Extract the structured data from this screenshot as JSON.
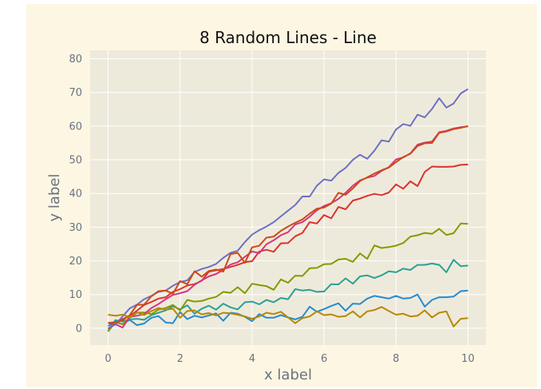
{
  "chart_data": {
    "type": "line",
    "title": "8 Random Lines - Line",
    "xlabel": "x label",
    "ylabel": "y label",
    "xlim": [
      -0.5,
      10.5
    ],
    "ylim": [
      -5,
      82.5
    ],
    "xticks": [
      0,
      2,
      4,
      6,
      8,
      10
    ],
    "yticks": [
      0,
      10,
      20,
      30,
      40,
      50,
      60,
      70,
      80
    ],
    "grid": true,
    "legend": "none",
    "colors": {
      "figure_bg": "#fdf6e3",
      "axes_bg": "#eeeadb",
      "grid": "#ffffff",
      "tick_label": "#6b7280"
    },
    "x": [
      0,
      0.2,
      0.4,
      0.6,
      0.8,
      1.0,
      1.2,
      1.4,
      1.6,
      1.8,
      2.0,
      2.2,
      2.4,
      2.6,
      2.8,
      3.0,
      3.2,
      3.4,
      3.6,
      3.8,
      4.0,
      4.2,
      4.4,
      4.6,
      4.8,
      5.0,
      5.2,
      5.4,
      5.6,
      5.8,
      6.0,
      6.2,
      6.4,
      6.6,
      6.8,
      7.0,
      7.2,
      7.4,
      7.6,
      7.8,
      8.0,
      8.2,
      8.4,
      8.6,
      8.8,
      9.0,
      9.2,
      9.4,
      9.6,
      9.8,
      10.0
    ],
    "series": [
      {
        "color": "#268bd2",
        "values": [
          0.6,
          1.9,
          1.2,
          2.5,
          0.9,
          1.4,
          3.1,
          3.6,
          1.7,
          1.5,
          4.8,
          2.7,
          3.7,
          3.2,
          3.8,
          4.4,
          2.2,
          4.6,
          4.3,
          3.4,
          2.1,
          4.2,
          3.1,
          3.1,
          3.9,
          3.2,
          2.6,
          3.4,
          6.4,
          4.9,
          5.7,
          6.6,
          7.4,
          5.2,
          7.3,
          7.2,
          8.8,
          9.6,
          9.2,
          8.8,
          9.6,
          8.8,
          9.0,
          10.0,
          6.4,
          8.4,
          9.2,
          9.2,
          9.4,
          11.0,
          11.2
        ]
      },
      {
        "color": "#2aa198",
        "values": [
          -0.9,
          2.4,
          2.0,
          2.6,
          2.8,
          2.5,
          3.9,
          4.6,
          5.3,
          6.5,
          5.6,
          6.8,
          4.3,
          5.8,
          6.7,
          5.5,
          7.3,
          6.2,
          5.6,
          7.7,
          7.9,
          7.1,
          8.4,
          7.7,
          9.0,
          8.6,
          11.6,
          11.2,
          11.4,
          10.8,
          10.9,
          13.1,
          13.0,
          14.8,
          13.2,
          15.4,
          15.7,
          14.9,
          15.7,
          16.9,
          16.6,
          17.7,
          17.3,
          18.8,
          18.8,
          19.2,
          18.8,
          16.6,
          20.3,
          18.4,
          18.6
        ]
      },
      {
        "color": "#859900",
        "values": [
          -1.0,
          1.8,
          1.2,
          3.1,
          4.6,
          4.7,
          4.2,
          5.5,
          6.0,
          6.9,
          5.3,
          8.4,
          7.9,
          8.1,
          8.8,
          9.3,
          10.8,
          10.5,
          12.2,
          10.4,
          13.2,
          12.8,
          12.5,
          11.4,
          14.5,
          13.5,
          15.6,
          15.5,
          17.8,
          17.9,
          19.0,
          19.1,
          20.4,
          20.6,
          19.7,
          22.2,
          20.6,
          24.6,
          23.8,
          24.1,
          24.5,
          25.3,
          27.2,
          27.6,
          28.3,
          28.0,
          29.5,
          27.7,
          28.2,
          31.1,
          31.0
        ]
      },
      {
        "color": "#dc322f",
        "values": [
          -0.2,
          1.3,
          2.7,
          3.6,
          5.2,
          6.9,
          7.8,
          8.8,
          9.2,
          10.8,
          11.6,
          12.7,
          13.1,
          14.1,
          16.8,
          17.2,
          17.6,
          18.2,
          18.8,
          19.6,
          19.9,
          22.8,
          23.3,
          22.7,
          25.2,
          25.3,
          27.3,
          28.3,
          31.5,
          31.1,
          33.6,
          32.6,
          36.0,
          35.3,
          37.9,
          38.5,
          39.3,
          39.9,
          39.5,
          40.3,
          42.7,
          41.4,
          43.6,
          42.2,
          46.4,
          48.0,
          47.9,
          47.9,
          48.0,
          48.5,
          48.6
        ]
      },
      {
        "color": "#d33682",
        "values": [
          1.5,
          1.2,
          0.2,
          3.4,
          3.7,
          4.2,
          6.0,
          7.2,
          8.6,
          9.9,
          10.4,
          11.0,
          12.9,
          14.2,
          15.4,
          16.1,
          17.3,
          18.9,
          19.6,
          21.2,
          22.8,
          22.3,
          24.9,
          26.1,
          27.6,
          28.5,
          30.8,
          31.5,
          33.1,
          35.0,
          36.3,
          37.1,
          38.4,
          40.2,
          42.3,
          43.9,
          44.7,
          45.2,
          46.7,
          47.8,
          50.1,
          50.7,
          51.9,
          54.5,
          55.1,
          55.4,
          58.2,
          58.6,
          59.3,
          59.7,
          59.9
        ]
      },
      {
        "color": "#6c71c4",
        "values": [
          -0.1,
          1.1,
          3.5,
          5.9,
          7.0,
          8.6,
          9.6,
          10.8,
          11.2,
          12.6,
          13.7,
          14.2,
          16.7,
          17.6,
          18.2,
          19.1,
          20.9,
          22.4,
          23.0,
          25.6,
          27.8,
          29.1,
          30.2,
          31.5,
          33.2,
          34.9,
          36.6,
          39.1,
          39.1,
          42.3,
          44.2,
          43.8,
          46.1,
          47.6,
          50.0,
          51.5,
          50.3,
          52.7,
          55.8,
          55.4,
          59.0,
          60.6,
          60.1,
          63.4,
          62.6,
          65.1,
          68.3,
          65.5,
          66.7,
          69.7,
          71.0
        ]
      },
      {
        "color": "#cb4b16",
        "values": [
          1.6,
          1.8,
          2.3,
          3.9,
          6.9,
          7.0,
          9.5,
          11.0,
          11.2,
          10.2,
          14.0,
          13.1,
          16.9,
          15.3,
          17.0,
          17.4,
          16.8,
          22.0,
          22.4,
          19.4,
          24.0,
          24.5,
          26.9,
          27.2,
          28.9,
          30.2,
          31.3,
          32.3,
          34.0,
          35.5,
          35.8,
          37.0,
          40.2,
          39.6,
          41.5,
          43.7,
          44.8,
          45.9,
          46.9,
          47.7,
          49.3,
          50.8,
          51.8,
          54.1,
          54.9,
          55.0,
          58.0,
          58.4,
          59.1,
          59.5,
          60.0
        ]
      },
      {
        "color": "#b58900",
        "values": [
          4.0,
          3.7,
          4.0,
          3.3,
          4.7,
          3.9,
          5.1,
          6.0,
          5.5,
          5.8,
          3.1,
          5.1,
          5.3,
          4.1,
          4.5,
          3.8,
          4.6,
          4.4,
          4.0,
          3.5,
          2.8,
          3.5,
          4.6,
          4.2,
          4.9,
          3.2,
          1.5,
          3.0,
          3.5,
          5.0,
          3.9,
          4.1,
          3.4,
          3.6,
          5.0,
          3.2,
          5.0,
          5.4,
          6.3,
          5.1,
          4.0,
          4.3,
          3.5,
          3.7,
          5.3,
          3.2,
          4.6,
          5.0,
          0.5,
          2.8,
          3.0
        ]
      }
    ]
  }
}
